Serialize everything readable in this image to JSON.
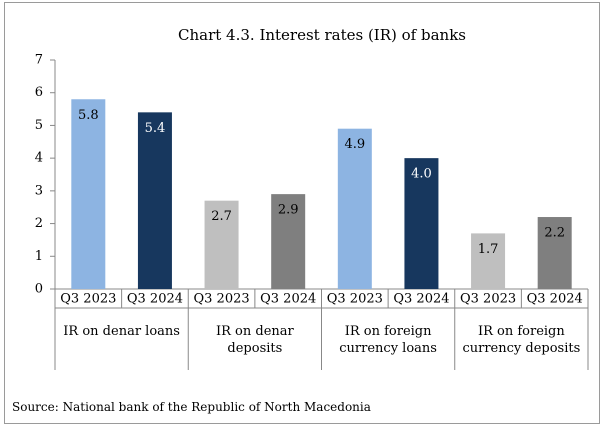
{
  "chart_data": {
    "type": "bar",
    "title": "Chart 4.3. Interest rates (IR) of banks",
    "categories": [
      "Q3 2023",
      "Q3 2024",
      "Q3 2023",
      "Q3 2024",
      "Q3 2023",
      "Q3 2024",
      "Q3 2023",
      "Q3 2024"
    ],
    "groups": [
      "IR on denar loans",
      "IR on denar deposits",
      "IR on foreign currency loans",
      "IR on foreign currency deposits"
    ],
    "values": [
      5.8,
      5.4,
      2.7,
      2.9,
      4.9,
      4.0,
      1.7,
      2.2
    ],
    "value_labels": [
      "5.8",
      "5.4",
      "2.7",
      "2.9",
      "4.9",
      "4.0",
      "1.7",
      "2.2"
    ],
    "colors": [
      "#8db4e2",
      "#17375e",
      "#bfbfbf",
      "#7f7f7f",
      "#8db4e2",
      "#17375e",
      "#bfbfbf",
      "#7f7f7f"
    ],
    "ylim": [
      0,
      7
    ],
    "yticks": [
      0,
      1,
      2,
      3,
      4,
      5,
      6,
      7
    ],
    "grid": false,
    "source": "Source: National bank of the Republic of North Macedonia"
  }
}
